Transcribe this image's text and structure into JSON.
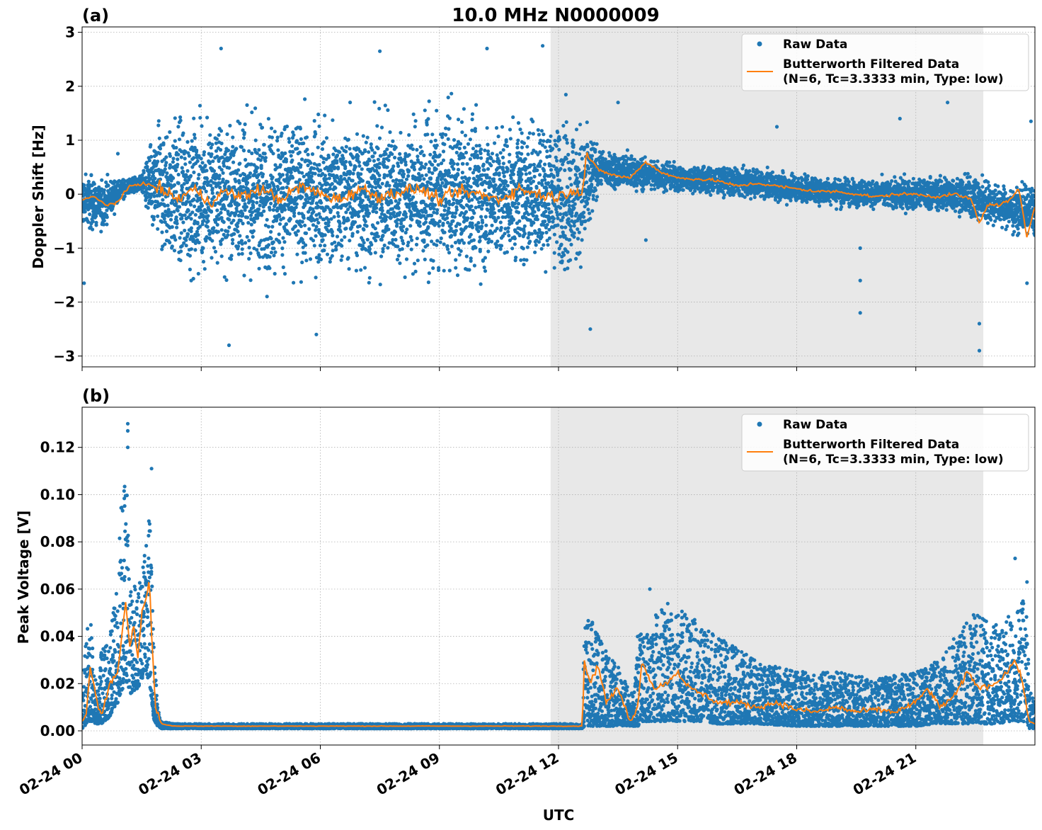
{
  "figure": {
    "title": "10.0 MHz N0000009",
    "xlabel": "UTC"
  },
  "colors": {
    "raw": "#1f77b4",
    "filtered": "#ff7f0e",
    "shade": "#e8e8e8",
    "grid": "#b0b0b0"
  },
  "chart_data": [
    {
      "type": "scatter",
      "panel_label": "(a)",
      "ylabel": "Doppler Shift [Hz]",
      "xlim": [
        0,
        24
      ],
      "ylim": [
        -3.2,
        3.1
      ],
      "yticks": [
        -3,
        -2,
        -1,
        0,
        1,
        2,
        3
      ],
      "ytick_labels": [
        "−3",
        "−2",
        "−1",
        "0",
        "1",
        "2",
        "3"
      ],
      "xticks": [
        0,
        3,
        6,
        9,
        12,
        15,
        18,
        21
      ],
      "xtick_labels": [
        "02-24 00",
        "02-24 03",
        "02-24 06",
        "02-24 09",
        "02-24 12",
        "02-24 15",
        "02-24 18",
        "02-24 21"
      ],
      "show_xtick_labels": false,
      "grid": true,
      "shaded_region_hours": [
        11.8,
        22.7
      ],
      "legend": {
        "placement": "upper-right",
        "raw_label": "Raw Data",
        "filtered_label_line1": "Butterworth Filtered Data",
        "filtered_label_line2": "(N=6, Tc=3.3333 min, Type: low)"
      },
      "series": [
        {
          "name": "Raw Data",
          "kind": "points",
          "x_hours": [
            0.0,
            0.5,
            1.0,
            1.5,
            1.9,
            2.5,
            3.5,
            4.5,
            5.5,
            6.5,
            7.5,
            8.5,
            9.5,
            10.5,
            11.5,
            12.6,
            13.0,
            14.0,
            15.0,
            16.0,
            17.0,
            18.0,
            19.0,
            20.0,
            21.0,
            22.0,
            22.6,
            23.0,
            23.5,
            24.0
          ],
          "y_center_hz": [
            -0.1,
            -0.2,
            0.1,
            0.2,
            0.1,
            0.0,
            0.0,
            0.0,
            0.0,
            0.0,
            0.0,
            0.0,
            0.0,
            0.0,
            0.05,
            0.0,
            0.45,
            0.4,
            0.3,
            0.25,
            0.2,
            0.1,
            0.05,
            0.0,
            0.0,
            0.0,
            -0.1,
            -0.2,
            -0.3,
            -0.3
          ],
          "y_spread_hz": [
            0.6,
            0.5,
            0.2,
            0.15,
            1.3,
            1.6,
            1.6,
            1.6,
            1.6,
            1.6,
            1.6,
            1.6,
            1.6,
            1.6,
            1.6,
            1.6,
            0.4,
            0.35,
            0.3,
            0.3,
            0.3,
            0.3,
            0.3,
            0.3,
            0.35,
            0.4,
            0.5,
            0.4,
            0.5,
            0.6
          ],
          "outliers": [
            [
              0.05,
              -1.65
            ],
            [
              0.9,
              0.75
            ],
            [
              3.5,
              2.7
            ],
            [
              3.7,
              -2.8
            ],
            [
              5.9,
              -2.6
            ],
            [
              7.5,
              2.65
            ],
            [
              10.2,
              2.7
            ],
            [
              11.6,
              2.75
            ],
            [
              12.8,
              -2.5
            ],
            [
              13.5,
              1.7
            ],
            [
              14.2,
              -0.85
            ],
            [
              17.5,
              1.25
            ],
            [
              19.6,
              -1.0
            ],
            [
              19.6,
              -1.6
            ],
            [
              19.6,
              -2.2
            ],
            [
              20.6,
              1.4
            ],
            [
              21.8,
              1.7
            ],
            [
              22.6,
              -2.9
            ],
            [
              22.6,
              -2.4
            ],
            [
              23.8,
              -1.65
            ],
            [
              23.9,
              1.35
            ]
          ]
        },
        {
          "name": "Butterworth Filtered Data",
          "kind": "line",
          "x_hours": [
            0.0,
            0.3,
            0.6,
            0.9,
            1.2,
            1.5,
            1.8,
            2.1,
            2.4,
            2.8,
            3.2,
            3.6,
            4.0,
            4.5,
            5.0,
            5.5,
            6.0,
            6.5,
            7.0,
            7.5,
            8.0,
            8.5,
            9.0,
            9.5,
            10.0,
            10.5,
            11.0,
            11.5,
            12.0,
            12.4,
            12.6,
            12.7,
            13.0,
            13.4,
            13.8,
            14.2,
            14.6,
            15.0,
            15.5,
            16.0,
            16.5,
            17.0,
            17.5,
            18.0,
            18.5,
            19.0,
            19.5,
            20.0,
            20.5,
            21.0,
            21.5,
            22.0,
            22.4,
            22.6,
            22.8,
            23.1,
            23.4,
            23.6,
            23.8,
            24.0
          ],
          "y_hz": [
            -0.1,
            -0.05,
            -0.2,
            -0.15,
            0.15,
            0.2,
            0.15,
            0.05,
            -0.1,
            0.1,
            -0.15,
            0.05,
            -0.05,
            0.1,
            -0.1,
            0.15,
            0.0,
            -0.1,
            0.1,
            -0.05,
            0.05,
            0.1,
            -0.1,
            0.05,
            0.0,
            -0.1,
            0.1,
            0.0,
            -0.05,
            0.1,
            0.0,
            0.75,
            0.45,
            0.35,
            0.3,
            0.6,
            0.4,
            0.3,
            0.28,
            0.25,
            0.15,
            0.2,
            0.15,
            0.1,
            0.05,
            0.05,
            0.0,
            -0.05,
            0.0,
            0.0,
            -0.05,
            0.0,
            -0.1,
            -0.55,
            -0.2,
            -0.2,
            -0.1,
            0.1,
            -0.8,
            -0.2
          ]
        }
      ]
    },
    {
      "type": "scatter",
      "panel_label": "(b)",
      "ylabel": "Peak Voltage [V]",
      "xlim": [
        0,
        24
      ],
      "ylim": [
        -0.006,
        0.137
      ],
      "yticks": [
        0.0,
        0.02,
        0.04,
        0.06,
        0.08,
        0.1,
        0.12
      ],
      "ytick_labels": [
        "0.00",
        "0.02",
        "0.04",
        "0.06",
        "0.08",
        "0.10",
        "0.12"
      ],
      "xticks": [
        0,
        3,
        6,
        9,
        12,
        15,
        18,
        21
      ],
      "xtick_labels": [
        "02-24 00",
        "02-24 03",
        "02-24 06",
        "02-24 09",
        "02-24 12",
        "02-24 15",
        "02-24 18",
        "02-24 21"
      ],
      "show_xtick_labels": true,
      "grid": true,
      "shaded_region_hours": [
        11.8,
        22.7
      ],
      "legend": {
        "placement": "upper-right",
        "raw_label": "Raw Data",
        "filtered_label_line1": "Butterworth Filtered Data",
        "filtered_label_line2": "(N=6, Tc=3.3333 min, Type: low)"
      },
      "series": [
        {
          "name": "Raw Data",
          "kind": "band",
          "x_hours": [
            0.0,
            0.1,
            0.2,
            0.35,
            0.5,
            0.7,
            0.9,
            1.0,
            1.1,
            1.25,
            1.4,
            1.6,
            1.7,
            1.8,
            1.9,
            2.0,
            2.3,
            3.0,
            6.0,
            9.0,
            12.0,
            12.6,
            12.65,
            12.9,
            13.2,
            13.6,
            13.9,
            14.0,
            14.1,
            14.4,
            14.8,
            15.2,
            15.6,
            16.0,
            16.5,
            17.0,
            18.0,
            19.0,
            20.0,
            21.0,
            21.5,
            22.0,
            22.5,
            23.0,
            23.5,
            23.8,
            23.85,
            24.0
          ],
          "y_low_v": [
            0.001,
            0.002,
            0.004,
            0.003,
            0.003,
            0.006,
            0.012,
            0.015,
            0.02,
            0.015,
            0.018,
            0.025,
            0.02,
            0.005,
            0.002,
            0.001,
            0.001,
            0.001,
            0.001,
            0.001,
            0.001,
            0.001,
            0.002,
            0.002,
            0.002,
            0.002,
            0.002,
            0.002,
            0.004,
            0.004,
            0.004,
            0.004,
            0.004,
            0.003,
            0.003,
            0.003,
            0.002,
            0.002,
            0.002,
            0.002,
            0.003,
            0.003,
            0.003,
            0.003,
            0.004,
            0.004,
            0.001,
            0.001
          ],
          "y_high_v": [
            0.015,
            0.04,
            0.05,
            0.02,
            0.035,
            0.04,
            0.07,
            0.105,
            0.11,
            0.065,
            0.06,
            0.08,
            0.1,
            0.04,
            0.01,
            0.004,
            0.003,
            0.003,
            0.003,
            0.003,
            0.003,
            0.003,
            0.05,
            0.045,
            0.035,
            0.025,
            0.015,
            0.045,
            0.04,
            0.05,
            0.055,
            0.05,
            0.045,
            0.04,
            0.035,
            0.03,
            0.025,
            0.025,
            0.022,
            0.025,
            0.03,
            0.04,
            0.05,
            0.045,
            0.05,
            0.06,
            0.02,
            0.01
          ],
          "outliers": [
            [
              1.15,
              0.13
            ],
            [
              1.15,
              0.127
            ],
            [
              1.15,
              0.12
            ],
            [
              1.75,
              0.111
            ],
            [
              14.3,
              0.06
            ],
            [
              23.5,
              0.073
            ],
            [
              23.8,
              0.063
            ]
          ]
        },
        {
          "name": "Butterworth Filtered Data",
          "kind": "line",
          "x_hours": [
            0.0,
            0.1,
            0.2,
            0.3,
            0.4,
            0.5,
            0.7,
            0.9,
            1.0,
            1.1,
            1.2,
            1.3,
            1.4,
            1.5,
            1.6,
            1.7,
            1.75,
            1.85,
            2.0,
            2.3,
            3.0,
            6.0,
            9.0,
            12.0,
            12.6,
            12.65,
            12.8,
            13.0,
            13.2,
            13.5,
            13.8,
            14.0,
            14.1,
            14.4,
            14.7,
            15.0,
            15.3,
            15.7,
            16.0,
            16.5,
            17.0,
            17.5,
            18.0,
            18.5,
            19.0,
            19.5,
            20.0,
            20.5,
            21.0,
            21.3,
            21.6,
            22.0,
            22.3,
            22.6,
            23.0,
            23.3,
            23.5,
            23.7,
            23.85,
            24.0
          ],
          "y_v": [
            0.004,
            0.006,
            0.027,
            0.02,
            0.01,
            0.008,
            0.02,
            0.025,
            0.04,
            0.055,
            0.035,
            0.045,
            0.03,
            0.05,
            0.055,
            0.065,
            0.04,
            0.01,
            0.003,
            0.002,
            0.002,
            0.002,
            0.002,
            0.002,
            0.002,
            0.03,
            0.02,
            0.028,
            0.012,
            0.018,
            0.004,
            0.01,
            0.03,
            0.018,
            0.02,
            0.025,
            0.018,
            0.015,
            0.012,
            0.012,
            0.01,
            0.012,
            0.009,
            0.008,
            0.01,
            0.008,
            0.009,
            0.008,
            0.012,
            0.018,
            0.01,
            0.015,
            0.025,
            0.018,
            0.02,
            0.025,
            0.03,
            0.02,
            0.004,
            0.003
          ]
        }
      ]
    }
  ]
}
